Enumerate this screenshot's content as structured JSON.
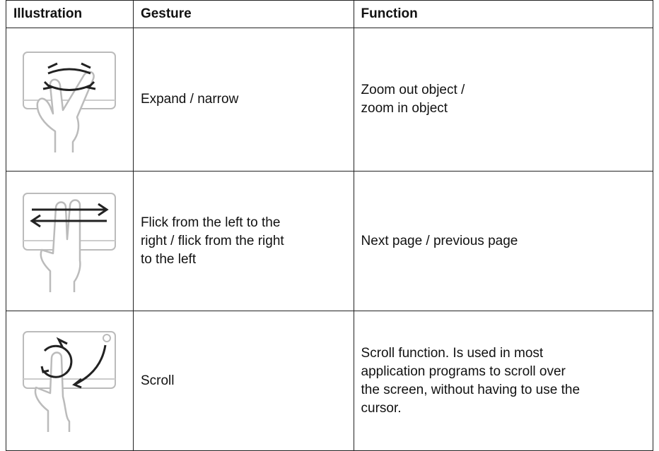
{
  "table": {
    "header": [
      "Illustration",
      "Gesture",
      "Function"
    ],
    "rows": [
      [
        "Expand / narrow",
        "Zoom out object /\nzoom in object"
      ],
      [
        "Flick from the left to the\nright / flick from the right\nto the left",
        "Next page / previous page"
      ],
      [
        "Scroll",
        "Scroll function. Is used in most\napplication programs to scroll over\nthe screen, without having to use the\ncursor."
      ]
    ]
  }
}
